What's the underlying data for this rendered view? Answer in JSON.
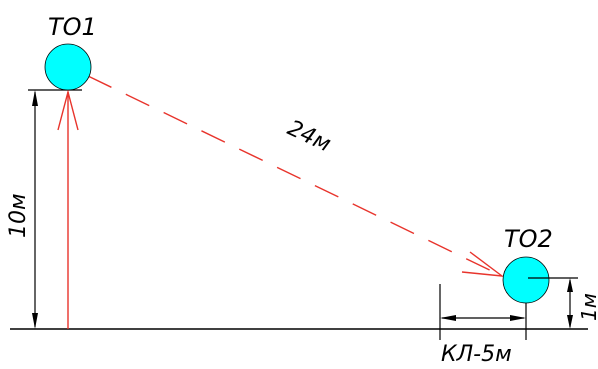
{
  "diagram": {
    "nodes": [
      {
        "id": "T01",
        "label": "ТО1",
        "fill": "#00ffff"
      },
      {
        "id": "T02",
        "label": "ТО2",
        "fill": "#00ffff"
      }
    ],
    "dimensions": {
      "diagonal": "24м",
      "left_height": "10м",
      "right_height": "1м",
      "bottom_horizontal": "КЛ-5м"
    },
    "colors": {
      "node_fill": "#00ffff",
      "link": "#e8342c",
      "dimension": "#000000",
      "ground": "#000000"
    }
  }
}
